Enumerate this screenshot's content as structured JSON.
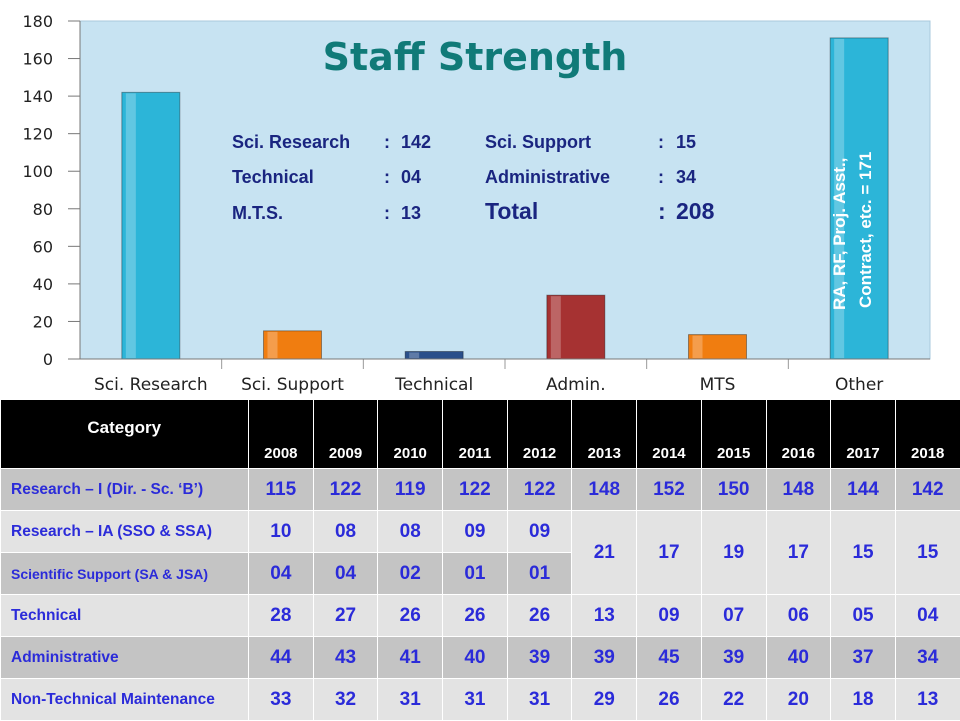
{
  "chart_data": {
    "type": "bar",
    "title": "Staff Strength",
    "categories": [
      "Sci. Research",
      "Sci. Support",
      "Technical",
      "Admin.",
      "MTS",
      "Other"
    ],
    "values": [
      142,
      15,
      4,
      34,
      13,
      171
    ],
    "colors": [
      "#2cb5d8",
      "#f07d10",
      "#2a4f8a",
      "#a63232",
      "#f07d10",
      "#2cb5d8"
    ],
    "ylim": [
      0,
      180
    ],
    "yticks": [
      "0",
      "20",
      "40",
      "60",
      "80",
      "100",
      "120",
      "140",
      "160",
      "180"
    ],
    "grid": false,
    "bar_annotations": [
      {
        "category": "Other",
        "line1": "RA, RF, Proj. Asst.,",
        "line2": "Contract, etc. = 171"
      }
    ],
    "summary": {
      "rows": [
        [
          {
            "label": "Sci. Research",
            "sep": ":",
            "value": "142"
          },
          {
            "label": "Sci. Support",
            "sep": ":",
            "value": "15"
          }
        ],
        [
          {
            "label": "Technical",
            "sep": ":",
            "value": "04"
          },
          {
            "label": "Administrative",
            "sep": ":",
            "value": "34"
          }
        ],
        [
          {
            "label": "M.T.S.",
            "sep": ":",
            "value": "13"
          },
          {
            "label": "Total",
            "sep": ":",
            "value": "208"
          }
        ]
      ]
    }
  },
  "table": {
    "category_header": "Category",
    "years": [
      "2008",
      "2009",
      "2010",
      "2011",
      "2012",
      "2013",
      "2014",
      "2015",
      "2016",
      "2017",
      "2018"
    ],
    "rows": [
      {
        "name": "Research – I (Dir. - Sc. ‘B’)",
        "values": [
          "115",
          "122",
          "119",
          "122",
          "122",
          "148",
          "152",
          "150",
          "148",
          "144",
          "142"
        ]
      },
      {
        "name": "Research – IA (SSO & SSA)",
        "values": [
          "10",
          "08",
          "08",
          "09",
          "09"
        ]
      },
      {
        "name": "Scientific  Support (SA & JSA)",
        "values": [
          "04",
          "04",
          "02",
          "01",
          "01"
        ]
      },
      {
        "name": "Technical",
        "values": [
          "28",
          "27",
          "26",
          "26",
          "26",
          "13",
          "09",
          "07",
          "06",
          "05",
          "04"
        ]
      },
      {
        "name": "Administrative",
        "values": [
          "44",
          "43",
          "41",
          "40",
          "39",
          "39",
          "45",
          "39",
          "40",
          "37",
          "34"
        ]
      },
      {
        "name": "Non-Technical Maintenance",
        "values": [
          "33",
          "32",
          "31",
          "31",
          "31",
          "29",
          "26",
          "22",
          "20",
          "18",
          "13"
        ]
      }
    ],
    "merged_research_support": [
      "21",
      "17",
      "19",
      "17",
      "15",
      "15"
    ]
  }
}
